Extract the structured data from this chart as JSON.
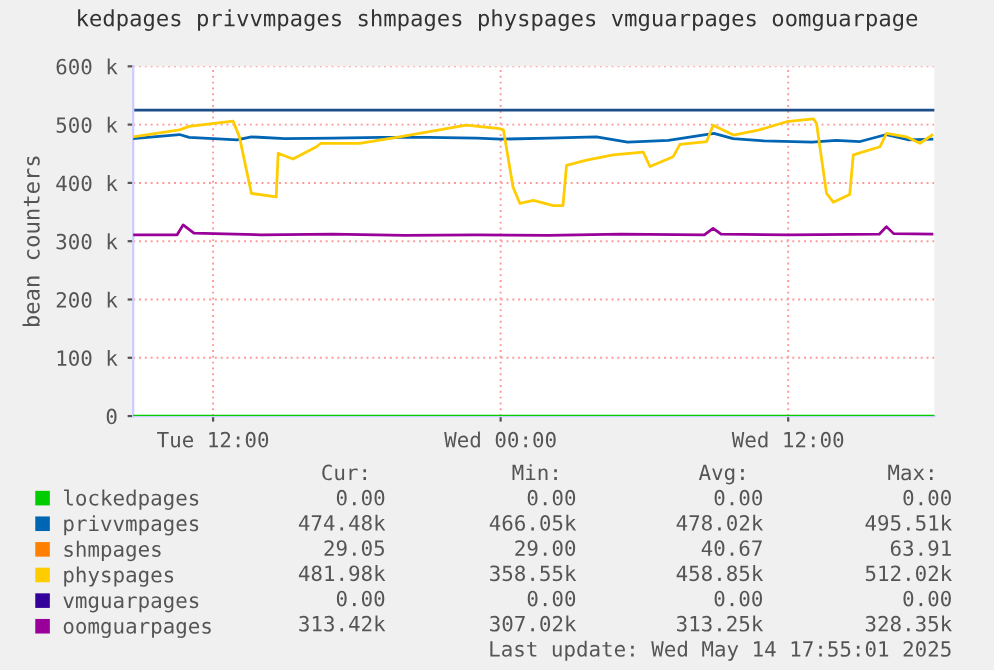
{
  "chart_data": {
    "type": "line",
    "title": "kedpages privvmpages shmpages physpages vmguarpages oomguarpage",
    "ylabel": "bean counters",
    "xlim": [
      "2025-05-13T08:40",
      "2025-05-14T18:06"
    ],
    "xticks": [
      {
        "value": "2025-05-13T12:00",
        "label": "Tue 12:00"
      },
      {
        "value": "2025-05-14T00:00",
        "label": "Wed 00:00"
      },
      {
        "value": "2025-05-14T12:00",
        "label": "Wed 12:00"
      }
    ],
    "ylim": [
      0,
      600000
    ],
    "yticks": [
      0,
      {
        "value": 100000,
        "label": "100 k"
      },
      {
        "value": 200000,
        "label": "200 k"
      },
      {
        "value": 300000,
        "label": "300 k"
      },
      {
        "value": 400000,
        "label": "400 k"
      },
      {
        "value": 500000,
        "label": "500 k"
      },
      {
        "value": 600000,
        "label": "600 k"
      }
    ],
    "grid": true,
    "legend": "bottom",
    "ref_lines": [
      {
        "axis": "y",
        "value": 525000,
        "color": "#1d4e89"
      }
    ],
    "series": [
      {
        "name": "lockedpages",
        "color": "#00cc00",
        "x": [
          "2025-05-13T08:40",
          "2025-05-14T18:06"
        ],
        "values": [
          0,
          0
        ]
      },
      {
        "name": "privvmpages",
        "color": "#0066b3",
        "x": [
          "2025-05-13T08:40",
          "2025-05-13T10:36",
          "2025-05-13T11:00",
          "2025-05-13T13:00",
          "2025-05-13T13:36",
          "2025-05-13T15:00",
          "2025-05-13T17:00",
          "2025-05-13T19:00",
          "2025-05-13T21:00",
          "2025-05-13T23:00",
          "2025-05-14T00:00",
          "2025-05-14T02:00",
          "2025-05-14T04:00",
          "2025-05-14T05:18",
          "2025-05-14T07:00",
          "2025-05-14T08:54",
          "2025-05-14T09:42",
          "2025-05-14T11:00",
          "2025-05-14T13:00",
          "2025-05-14T14:00",
          "2025-05-14T15:00",
          "2025-05-14T16:06",
          "2025-05-14T17:00",
          "2025-05-14T18:00"
        ],
        "values": [
          476000,
          483000,
          478000,
          474000,
          479000,
          476000,
          477000,
          478000,
          478000,
          477000,
          475000,
          477000,
          479000,
          470000,
          473000,
          485000,
          476000,
          472000,
          470000,
          473000,
          471000,
          483000,
          474000,
          475000
        ]
      },
      {
        "name": "shmpages",
        "color": "#ff8000"
      },
      {
        "name": "physpages",
        "color": "#ffcc00",
        "x": [
          "2025-05-13T08:40",
          "2025-05-13T10:36",
          "2025-05-13T11:00",
          "2025-05-13T12:50",
          "2025-05-13T13:06",
          "2025-05-13T13:36",
          "2025-05-13T14:38",
          "2025-05-13T14:43",
          "2025-05-13T15:20",
          "2025-05-13T16:19",
          "2025-05-13T16:30",
          "2025-05-13T18:07",
          "2025-05-13T19:47",
          "2025-05-13T22:34",
          "2025-05-13T23:58",
          "2025-05-14T00:07",
          "2025-05-14T00:31",
          "2025-05-14T00:48",
          "2025-05-14T01:22",
          "2025-05-14T02:12",
          "2025-05-14T02:36",
          "2025-05-14T02:45",
          "2025-05-14T03:35",
          "2025-05-14T04:42",
          "2025-05-14T05:57",
          "2025-05-14T06:14",
          "2025-05-14T07:12",
          "2025-05-14T07:29",
          "2025-05-14T08:36",
          "2025-05-14T08:52",
          "2025-05-14T09:43",
          "2025-05-14T10:48",
          "2025-05-14T11:56",
          "2025-05-14T13:03",
          "2025-05-14T13:11",
          "2025-05-14T13:36",
          "2025-05-14T13:53",
          "2025-05-14T14:34",
          "2025-05-14T14:43",
          "2025-05-14T15:50",
          "2025-05-14T16:06",
          "2025-05-14T16:56",
          "2025-05-14T17:30",
          "2025-05-14T18:00"
        ],
        "values": [
          479000,
          491000,
          497000,
          506000,
          479000,
          382000,
          376000,
          451000,
          441000,
          462000,
          468000,
          468000,
          479000,
          499000,
          493000,
          491000,
          393000,
          365000,
          370000,
          361000,
          361000,
          430000,
          439000,
          448000,
          453000,
          428000,
          445000,
          466000,
          471000,
          499000,
          482000,
          491000,
          505000,
          510000,
          502000,
          382000,
          367000,
          380000,
          448000,
          462000,
          485000,
          479000,
          468000,
          482000
        ]
      },
      {
        "name": "vmguarpages",
        "color": "#330099"
      },
      {
        "name": "oomguarpages",
        "color": "#990099",
        "x": [
          "2025-05-13T08:40",
          "2025-05-13T10:30",
          "2025-05-13T10:45",
          "2025-05-13T11:12",
          "2025-05-13T14:00",
          "2025-05-13T17:00",
          "2025-05-13T20:00",
          "2025-05-13T23:00",
          "2025-05-14T02:00",
          "2025-05-14T05:00",
          "2025-05-14T08:30",
          "2025-05-14T08:52",
          "2025-05-14T09:12",
          "2025-05-14T12:00",
          "2025-05-14T15:48",
          "2025-05-14T16:06",
          "2025-05-14T16:24",
          "2025-05-14T18:00"
        ],
        "values": [
          311000,
          311000,
          328000,
          314000,
          311000,
          312000,
          310000,
          311000,
          310000,
          312000,
          311000,
          322000,
          312000,
          311000,
          312000,
          325000,
          313000,
          312000
        ]
      }
    ],
    "annotations": [
      "Cur:",
      "Min:",
      "Avg:",
      "Max:",
      "0.00",
      "0.00",
      "0.00",
      "0.00",
      "474.48k",
      "466.05k",
      "478.02k",
      "495.51k",
      "29.05",
      "29.00",
      "40.67",
      "63.91",
      "481.98k",
      "358.55k",
      "458.85k",
      "512.02k",
      "0.00",
      "0.00",
      "0.00",
      "0.00",
      "313.42k",
      "307.02k",
      "313.25k",
      "328.35k",
      "Last update: Wed May 14 17:55:01 2025"
    ]
  }
}
